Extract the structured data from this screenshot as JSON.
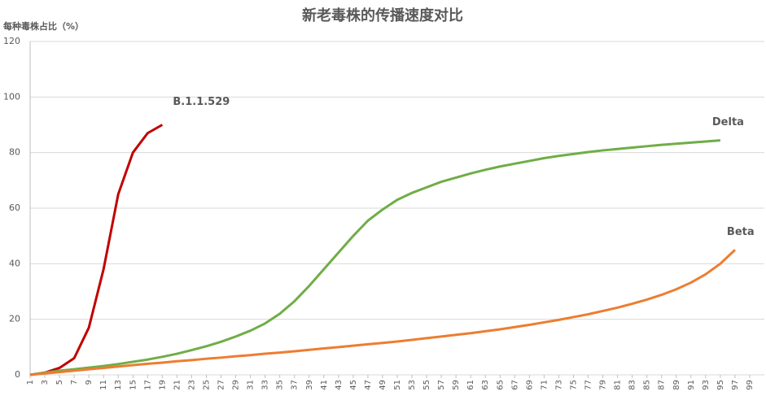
{
  "chart_data": {
    "type": "line",
    "title": "新老毒株的传播速度对比",
    "y_label": "每种毒株占比（%）",
    "x": [
      1,
      3,
      5,
      7,
      9,
      11,
      13,
      15,
      17,
      19,
      21,
      23,
      25,
      27,
      29,
      31,
      33,
      35,
      37,
      39,
      41,
      43,
      45,
      47,
      49,
      51,
      53,
      55,
      57,
      59,
      61,
      63,
      65,
      67,
      69,
      71,
      73,
      75,
      77,
      79,
      81,
      83,
      85,
      87,
      89,
      91,
      93,
      95,
      97,
      99
    ],
    "xlim": [
      1,
      101
    ],
    "xticks": [
      1,
      3,
      5,
      7,
      9,
      11,
      13,
      15,
      17,
      19,
      21,
      23,
      25,
      27,
      29,
      31,
      33,
      35,
      37,
      39,
      41,
      43,
      45,
      47,
      49,
      51,
      53,
      55,
      57,
      59,
      61,
      63,
      65,
      67,
      69,
      71,
      73,
      75,
      77,
      79,
      81,
      83,
      85,
      87,
      89,
      91,
      93,
      95,
      97,
      99
    ],
    "ylim": [
      0,
      120
    ],
    "yticks": [
      0,
      20,
      40,
      60,
      80,
      100,
      120
    ],
    "grid": true,
    "series": [
      {
        "name": "B.1.1.529",
        "color": "#c00000",
        "values": [
          0,
          0.8,
          2.5,
          6,
          17,
          38,
          65,
          80,
          87,
          90,
          null,
          null,
          null,
          null,
          null,
          null,
          null,
          null,
          null,
          null,
          null,
          null,
          null,
          null,
          null,
          null,
          null,
          null,
          null,
          null,
          null,
          null,
          null,
          null,
          null,
          null,
          null,
          null,
          null,
          null,
          null,
          null,
          null,
          null,
          null,
          null,
          null,
          null,
          null,
          null
        ]
      },
      {
        "name": "Delta",
        "color": "#70ad47",
        "values": [
          0,
          0.8,
          1.5,
          2,
          2.6,
          3.2,
          3.9,
          4.7,
          5.5,
          6.5,
          7.6,
          8.9,
          10.3,
          11.9,
          13.8,
          15.9,
          18.5,
          22,
          26.5,
          32,
          38,
          44,
          50,
          55.5,
          59.5,
          63,
          65.5,
          67.5,
          69.5,
          71,
          72.5,
          73.8,
          75,
          76,
          77,
          78,
          78.8,
          79.5,
          80.2,
          80.8,
          81.3,
          81.8,
          82.3,
          82.8,
          83.2,
          83.6,
          84,
          84.4,
          null,
          null
        ]
      },
      {
        "name": "Beta",
        "color": "#ed7d31",
        "values": [
          0,
          0.5,
          1,
          1.5,
          2,
          2.5,
          3,
          3.5,
          4,
          4.4,
          4.9,
          5.3,
          5.8,
          6.2,
          6.7,
          7.1,
          7.6,
          8,
          8.5,
          9,
          9.5,
          10,
          10.5,
          11,
          11.5,
          12,
          12.6,
          13.2,
          13.8,
          14.4,
          15,
          15.7,
          16.4,
          17.2,
          18,
          18.9,
          19.8,
          20.8,
          21.8,
          23,
          24.2,
          25.6,
          27.1,
          28.8,
          30.8,
          33.2,
          36.2,
          40,
          45,
          null
        ]
      }
    ]
  }
}
